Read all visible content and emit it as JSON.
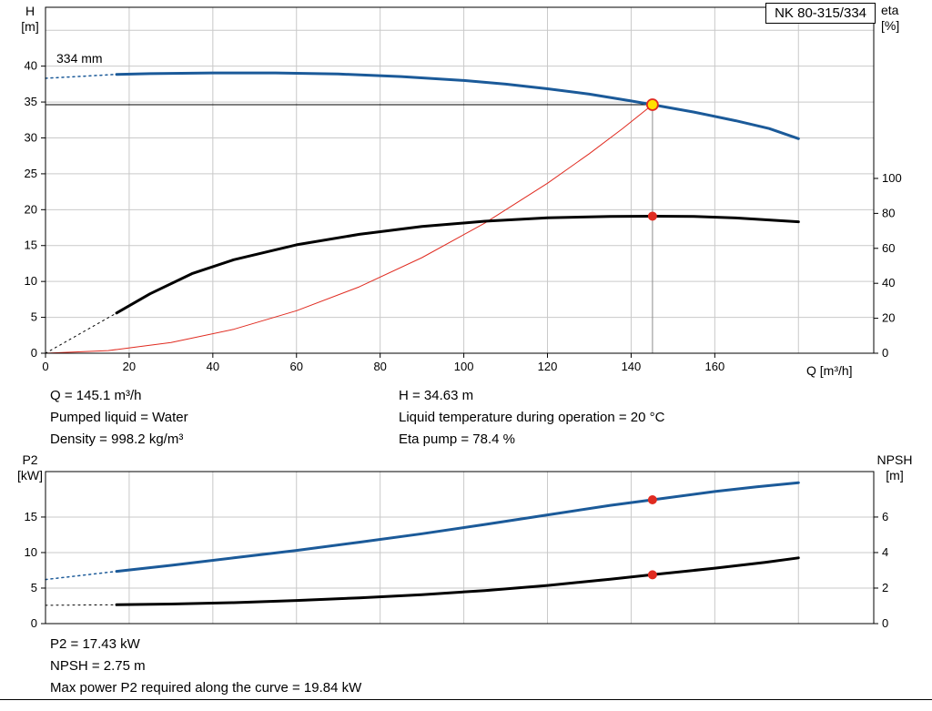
{
  "model_box": "NK 80-315/334",
  "impeller_label": "334 mm",
  "axes_labels": {
    "top_left_1": "H",
    "top_left_2": "[m]",
    "top_right_1": "eta",
    "top_right_2": "[%]",
    "x_label": "Q [m³/h]",
    "bottom_left_1": "P2",
    "bottom_left_2": "[kW]",
    "bottom_right_1": "NPSH",
    "bottom_right_2": "[m]"
  },
  "info_top_left": [
    "Q = 145.1 m³/h",
    "Pumped liquid = Water",
    "Density = 998.2 kg/m³"
  ],
  "info_top_right": [
    "H = 34.63 m",
    "Liquid temperature during operation = 20 °C",
    "Eta pump = 78.4 %"
  ],
  "info_bottom": [
    "P2 = 17.43 kW",
    "NPSH = 2.75 m",
    "Max power P2 required along the curve = 19.84 kW"
  ],
  "colors": {
    "curve_blue": "#1b5a99",
    "curve_black": "#000000",
    "system_red": "#e02b20",
    "duty_yellow": "#ffe100",
    "grid": "#c9c9c9",
    "frame": "#000000",
    "guide_gray": "#8c8c8c"
  },
  "chart_data": [
    {
      "type": "line",
      "title": "NK 80-315/334",
      "xlabel": "Q [m³/h]",
      "ylabel": "H [m]",
      "y2label": "eta [%]",
      "xlim": [
        0,
        198
      ],
      "ylim": [
        0,
        48.2
      ],
      "y2lim": [
        0,
        197.9
      ],
      "xticks": [
        0,
        20,
        40,
        60,
        80,
        100,
        120,
        140,
        160
      ],
      "xgrid": [
        20,
        40,
        60,
        80,
        100,
        120,
        140,
        160,
        180
      ],
      "yticks": [
        0,
        5,
        10,
        15,
        20,
        25,
        30,
        35,
        40
      ],
      "ygrid": [
        5,
        10,
        15,
        20,
        25,
        30,
        35,
        40,
        45
      ],
      "y2ticks": [
        0,
        20,
        40,
        60,
        80,
        100
      ],
      "duty_point": {
        "Q": 145.1,
        "H": 34.63,
        "eta": 78.4
      },
      "series": [
        {
          "name": "duty-vertical-guide",
          "axis": "left",
          "color": "#8c8c8c",
          "width": 1,
          "x": [
            145.1,
            145.1
          ],
          "y": [
            0,
            34.63
          ]
        },
        {
          "name": "duty-head-line",
          "axis": "left",
          "color": "#000000",
          "width": 1,
          "x": [
            0,
            145.1
          ],
          "y": [
            34.63,
            34.63
          ]
        },
        {
          "name": "system-curve",
          "axis": "left",
          "color": "#e02b20",
          "width": 1,
          "x": [
            0,
            15,
            30,
            45,
            60,
            75,
            90,
            105,
            120,
            130,
            138,
            145.1
          ],
          "y": [
            0,
            0.37,
            1.48,
            3.33,
            5.92,
            9.25,
            13.32,
            18.13,
            23.68,
            27.8,
            31.32,
            34.63
          ]
        },
        {
          "name": "eta-curve-dashed",
          "axis": "right",
          "color": "#000000",
          "width": 1,
          "dash": "2,4",
          "x": [
            0,
            17
          ],
          "y": [
            0,
            23
          ]
        },
        {
          "name": "eta-curve",
          "axis": "right",
          "color": "#000000",
          "width": 3,
          "x": [
            17,
            25,
            35,
            45,
            60,
            75,
            90,
            105,
            120,
            135,
            145.1,
            155,
            165,
            180
          ],
          "y": [
            23,
            34,
            45.5,
            53.5,
            62,
            68,
            72.5,
            75.5,
            77.5,
            78.3,
            78.4,
            78.2,
            77.4,
            75.2
          ]
        },
        {
          "name": "head-curve-dashed",
          "axis": "left",
          "color": "#1b5a99",
          "width": 1.5,
          "dash": "2,4",
          "x": [
            0,
            17
          ],
          "y": [
            38.3,
            38.85
          ]
        },
        {
          "name": "head-curve",
          "axis": "left",
          "color": "#1b5a99",
          "width": 3,
          "x": [
            17,
            25,
            40,
            55,
            70,
            85,
            100,
            110,
            120,
            130,
            140,
            145.1,
            155,
            165,
            173,
            180
          ],
          "y": [
            38.85,
            38.95,
            39.05,
            39.05,
            38.9,
            38.55,
            38.0,
            37.5,
            36.85,
            36.1,
            35.15,
            34.63,
            33.6,
            32.4,
            31.3,
            29.9
          ]
        }
      ],
      "markers": [
        {
          "name": "duty-point",
          "axis": "left",
          "x": 145.1,
          "y": 34.63,
          "r": 6,
          "fill": "#ffe100",
          "stroke": "#e02b20",
          "sw": 1.8
        },
        {
          "name": "eta-point",
          "axis": "right",
          "x": 145.1,
          "y": 78.4,
          "r": 4.5,
          "fill": "#e02b20",
          "stroke": "#e02b20",
          "sw": 1
        }
      ]
    },
    {
      "type": "line",
      "title": "",
      "xlabel": "",
      "ylabel": "P2 [kW]",
      "y2label": "NPSH [m]",
      "xlim": [
        0,
        198
      ],
      "ylim": [
        0,
        21.4
      ],
      "y2lim": [
        0,
        8.56
      ],
      "xticks": [],
      "xgrid": [
        20,
        40,
        60,
        80,
        100,
        120,
        140,
        160,
        180
      ],
      "yticks": [
        0,
        5,
        10,
        15
      ],
      "ygrid": [
        5,
        10,
        15
      ],
      "y2ticks": [
        0,
        2,
        4,
        6
      ],
      "duty_point": {
        "Q": 145.1,
        "P2": 17.43,
        "NPSH": 2.75
      },
      "series": [
        {
          "name": "p2-curve-dashed",
          "axis": "left",
          "color": "#1b5a99",
          "width": 1.5,
          "dash": "2,4",
          "x": [
            0,
            17
          ],
          "y": [
            6.2,
            7.35
          ]
        },
        {
          "name": "p2-curve",
          "axis": "left",
          "color": "#1b5a99",
          "width": 3,
          "x": [
            17,
            30,
            45,
            60,
            75,
            90,
            105,
            120,
            135,
            145.1,
            160,
            170,
            180
          ],
          "y": [
            7.35,
            8.2,
            9.25,
            10.3,
            11.45,
            12.65,
            13.95,
            15.3,
            16.65,
            17.43,
            18.6,
            19.25,
            19.84
          ]
        },
        {
          "name": "npsh-curve-dashed",
          "axis": "right",
          "color": "#000000",
          "width": 1,
          "dash": "2,4",
          "x": [
            0,
            17
          ],
          "y": [
            1.03,
            1.06
          ]
        },
        {
          "name": "npsh-curve",
          "axis": "right",
          "color": "#000000",
          "width": 3,
          "x": [
            17,
            30,
            45,
            60,
            75,
            90,
            105,
            120,
            135,
            145.1,
            160,
            172,
            180
          ],
          "y": [
            1.06,
            1.1,
            1.18,
            1.3,
            1.45,
            1.63,
            1.86,
            2.15,
            2.5,
            2.75,
            3.12,
            3.45,
            3.7
          ]
        }
      ],
      "markers": [
        {
          "name": "p2-point",
          "axis": "left",
          "x": 145.1,
          "y": 17.43,
          "r": 4.5,
          "fill": "#e02b20",
          "stroke": "#e02b20",
          "sw": 1
        },
        {
          "name": "npsh-point",
          "axis": "right",
          "x": 145.1,
          "y": 2.75,
          "r": 4.5,
          "fill": "#e02b20",
          "stroke": "#e02b20",
          "sw": 1
        }
      ]
    }
  ]
}
